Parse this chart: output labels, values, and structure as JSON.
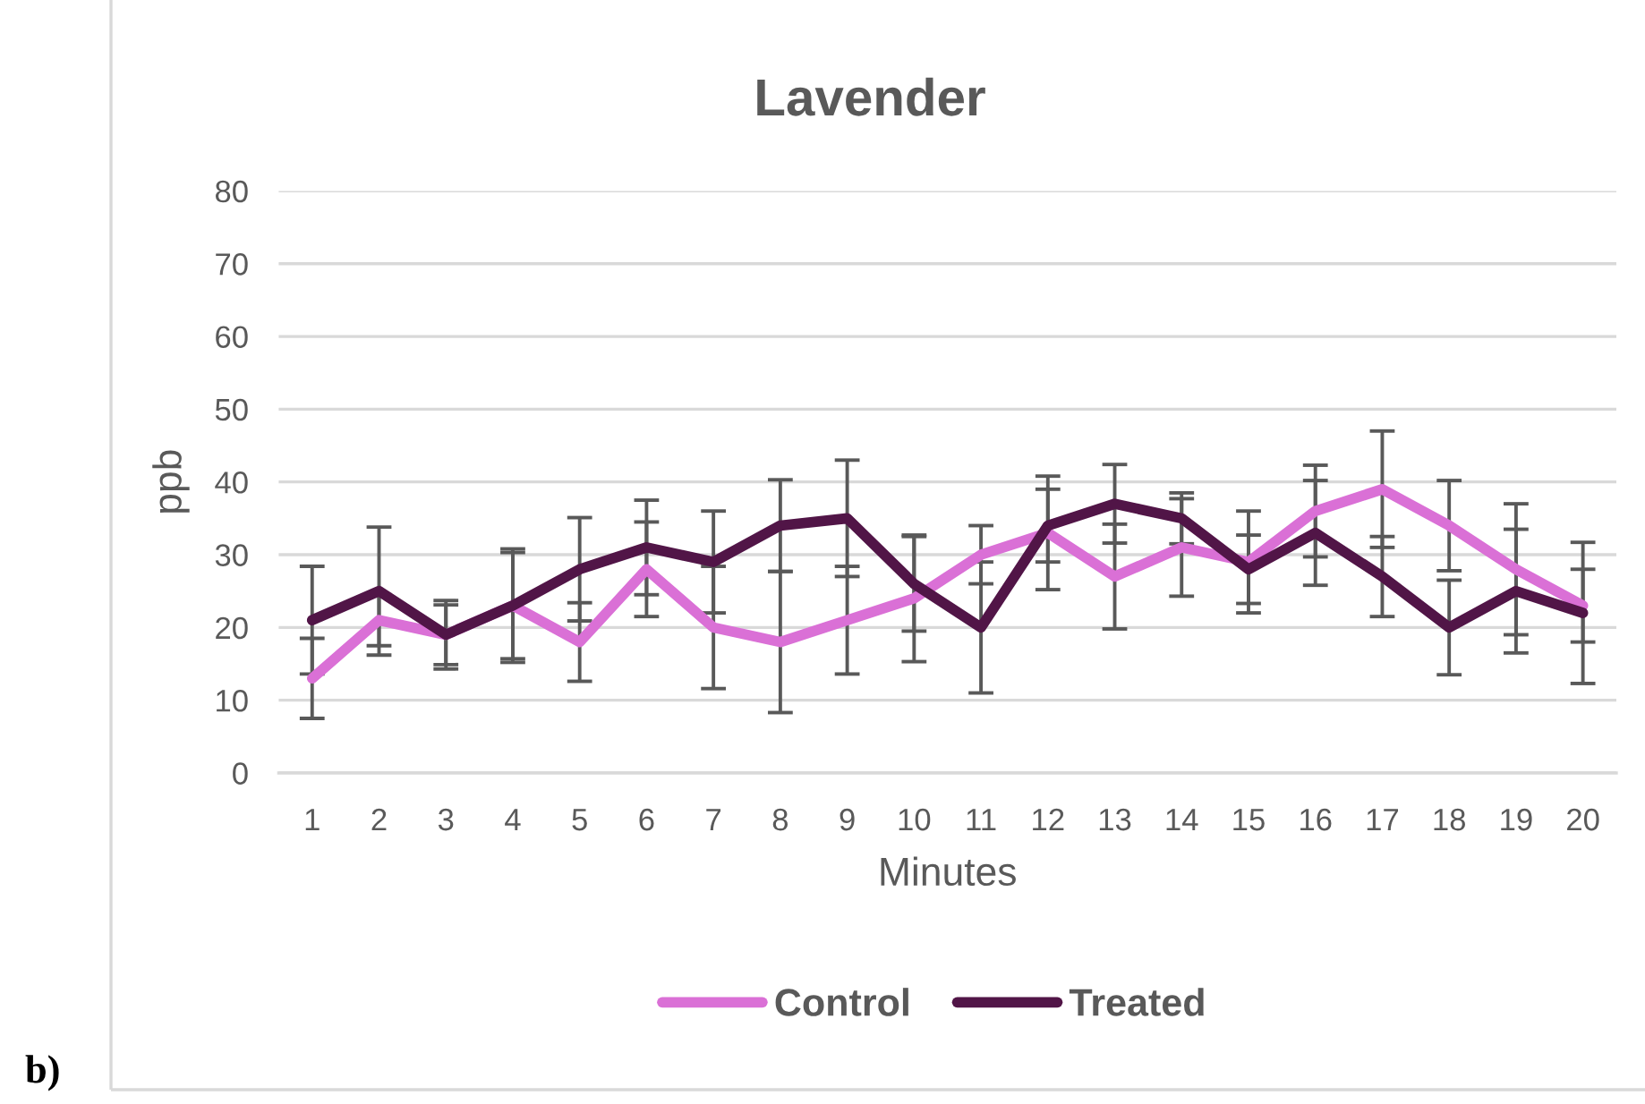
{
  "chart_data": {
    "type": "line",
    "title": "Lavender",
    "xlabel": "Minutes",
    "ylabel": "ppb",
    "categories": [
      "1",
      "2",
      "3",
      "4",
      "5",
      "6",
      "7",
      "8",
      "9",
      "10",
      "11",
      "12",
      "13",
      "14",
      "15",
      "16",
      "17",
      "18",
      "19",
      "20"
    ],
    "series": [
      {
        "name": "Control",
        "color": "#da70d6",
        "values": [
          13,
          21,
          19,
          23,
          18,
          28,
          20,
          18,
          21,
          24,
          30,
          33,
          27,
          31,
          29,
          36,
          39,
          34,
          28,
          23
        ],
        "errors": [
          5.5,
          3.5,
          4.1,
          7.3,
          5.4,
          6.5,
          8.4,
          9.7,
          7.4,
          8.7,
          4,
          7.8,
          7.2,
          6.7,
          7,
          6.3,
          8,
          6.2,
          9,
          5
        ]
      },
      {
        "name": "Treated",
        "color": "#511547",
        "values": [
          21,
          25,
          19,
          23,
          28,
          31,
          29,
          34,
          35,
          26,
          20,
          34,
          37,
          35,
          28,
          33,
          27,
          20,
          25,
          22
        ],
        "errors": [
          7.4,
          8.8,
          4.7,
          7.8,
          7.1,
          6.5,
          7,
          6.3,
          8,
          6.5,
          9,
          5,
          5.4,
          3.5,
          4.7,
          7.2,
          5.5,
          6.5,
          8.5,
          9.7
        ]
      }
    ],
    "ylim": [
      0,
      80
    ],
    "yticks": [
      0,
      10,
      20,
      30,
      40,
      50,
      60,
      70,
      80
    ],
    "grid": "y",
    "legend": "bottom",
    "marker": "none",
    "line_style": "solid",
    "annotations": [
      "b)"
    ]
  }
}
